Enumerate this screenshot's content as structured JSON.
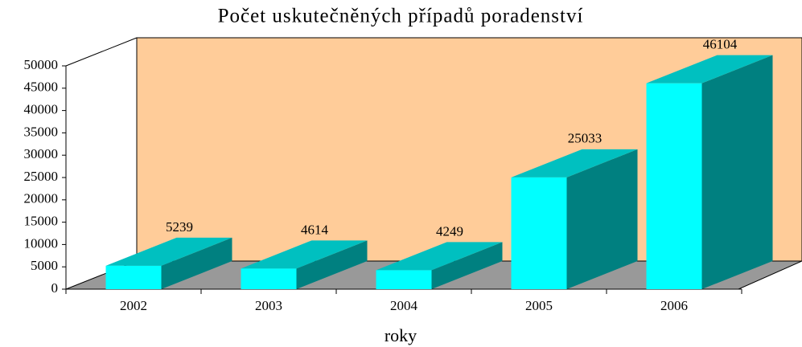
{
  "chart_data": {
    "type": "bar",
    "title": "Počet uskutečněných případů poradenství",
    "xlabel": "roky",
    "categories": [
      "2002",
      "2003",
      "2004",
      "2005",
      "2006"
    ],
    "values": [
      5239,
      4614,
      4249,
      25033,
      46104
    ],
    "color": "#00ffff",
    "ylim": [
      0,
      50000
    ],
    "yticks": [
      0,
      5000,
      10000,
      15000,
      20000,
      25000,
      30000,
      35000,
      40000,
      45000,
      50000
    ]
  }
}
